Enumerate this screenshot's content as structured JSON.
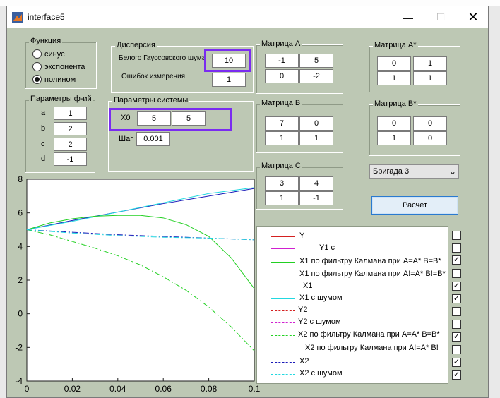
{
  "window": {
    "title": "interface5",
    "min_icon": "minimize-icon",
    "max_icon": "maximize-icon",
    "close_icon": "close-icon"
  },
  "func_panel": {
    "title": "Функция",
    "options": [
      "синус",
      "экспонента",
      "полином"
    ],
    "selected": "полином"
  },
  "params_panel": {
    "title": "Параметры ф-ий",
    "labels": [
      "a",
      "b",
      "c",
      "d"
    ],
    "values": [
      "1",
      "2",
      "2",
      "-1"
    ]
  },
  "dispersion": {
    "title": "Дисперсия",
    "white_noise_label": "Белого Гауссовского шума",
    "white_noise_value": "10",
    "meas_error_label": "Ошибок измерения",
    "meas_error_value": "1"
  },
  "system": {
    "title": "Параметры системы",
    "x0_label": "X0",
    "x0_values": [
      "5",
      "5"
    ],
    "step_label": "Шаг",
    "step_value": "0.001"
  },
  "matrices": {
    "A": {
      "title": "Матрица А",
      "values": [
        "-1",
        "5",
        "0",
        "-2"
      ]
    },
    "B": {
      "title": "Матрица В",
      "values": [
        "7",
        "0",
        "1",
        "1"
      ]
    },
    "C": {
      "title": "Матрица С",
      "values": [
        "3",
        "4",
        "1",
        "-1"
      ]
    },
    "Astar": {
      "title": "Матрица А*",
      "values": [
        "0",
        "1",
        "1",
        "1"
      ]
    },
    "Bstar": {
      "title": "Матрица В*",
      "values": [
        "0",
        "0",
        "1",
        "0"
      ]
    }
  },
  "brigade": {
    "selected": "Бригада 3"
  },
  "calc_button": "Расчет",
  "legend": [
    {
      "label": "Y",
      "color": "#d42020",
      "style": "solid",
      "checked": false
    },
    {
      "label": "Y1 с",
      "color": "#d020d0",
      "style": "solid",
      "checked": false
    },
    {
      "label": "X1 по фильтру Калмана при А=А* В=В*",
      "color": "#22d022",
      "style": "solid",
      "checked": true
    },
    {
      "label": "X1 по фильтру Калмана при А!=А* В!=В*",
      "color": "#e8e020",
      "style": "solid",
      "checked": false
    },
    {
      "label": "X1",
      "color": "#1a1ab8",
      "style": "solid",
      "checked": true
    },
    {
      "label": "X1 с шумом",
      "color": "#22d8e0",
      "style": "solid",
      "checked": true
    },
    {
      "label": "Y2",
      "color": "#d42020",
      "style": "dashed",
      "checked": false
    },
    {
      "label": "Y2 с шумом",
      "color": "#d020d0",
      "style": "dashed",
      "checked": false
    },
    {
      "label": "X2 по фильтру Калмана при А=А* В=В*",
      "color": "#22d022",
      "style": "dashed",
      "checked": true
    },
    {
      "label": "X2 по фильтру Калмана при А!=А* В!",
      "color": "#e8e020",
      "style": "dashed",
      "checked": false
    },
    {
      "label": "X2",
      "color": "#1a1ab8",
      "style": "dashed",
      "checked": true
    },
    {
      "label": "X2 с шумом",
      "color": "#22d8e0",
      "style": "dashed",
      "checked": true
    }
  ],
  "chart_data": {
    "type": "line",
    "xlim": [
      0,
      0.1
    ],
    "ylim": [
      -4,
      8
    ],
    "y_ticks": [
      -4,
      -2,
      0,
      2,
      4,
      6,
      8
    ],
    "x_ticks": [
      0,
      0.02,
      0.04,
      0.06,
      0.08,
      0.1
    ],
    "grid": false,
    "series": [
      {
        "color": "#1a1ab8",
        "style": "solid",
        "x": [
          0,
          0.02,
          0.04,
          0.06,
          0.08,
          0.1
        ],
        "y": [
          5.0,
          5.55,
          6.05,
          6.55,
          7.0,
          7.45
        ]
      },
      {
        "color": "#22d8e0",
        "style": "solid",
        "x": [
          0,
          0.02,
          0.04,
          0.06,
          0.08,
          0.1
        ],
        "y": [
          5.0,
          5.5,
          6.05,
          6.6,
          7.15,
          7.5
        ]
      },
      {
        "color": "#22d022",
        "style": "solid",
        "x": [
          0,
          0.01,
          0.02,
          0.03,
          0.04,
          0.05,
          0.06,
          0.07,
          0.08,
          0.09,
          0.1
        ],
        "y": [
          5.0,
          5.4,
          5.65,
          5.8,
          5.85,
          5.85,
          5.7,
          5.3,
          4.6,
          3.3,
          1.5
        ]
      },
      {
        "color": "#22d022",
        "style": "dashdot",
        "x": [
          0,
          0.01,
          0.02,
          0.03,
          0.04,
          0.05,
          0.06,
          0.07,
          0.08,
          0.09,
          0.1
        ],
        "y": [
          5.0,
          4.7,
          4.3,
          3.9,
          3.45,
          2.9,
          2.2,
          1.4,
          0.4,
          -0.8,
          -2.2
        ]
      },
      {
        "color": "#1a1ab8",
        "style": "dashdot",
        "x": [
          0,
          0.02,
          0.04,
          0.06,
          0.08,
          0.1
        ],
        "y": [
          5.0,
          4.85,
          4.7,
          4.6,
          4.5,
          4.4
        ]
      },
      {
        "color": "#22d8e0",
        "style": "dashdot",
        "x": [
          0,
          0.02,
          0.04,
          0.06,
          0.08,
          0.1
        ],
        "y": [
          5.0,
          4.8,
          4.65,
          4.55,
          4.5,
          4.4
        ]
      }
    ]
  }
}
